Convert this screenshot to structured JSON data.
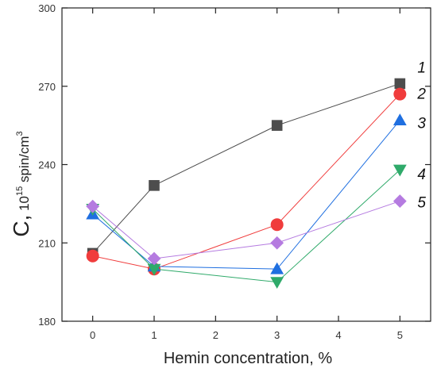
{
  "chart_data": {
    "type": "line",
    "title": "",
    "xlabel": "Hemin concentration, %",
    "ylabel": {
      "main": "C,",
      "sub": " 10",
      "exp": "15",
      "unit": " spin/cm",
      "unit_exp": "3"
    },
    "xlim": [
      -0.5,
      5.5
    ],
    "ylim": [
      180,
      300
    ],
    "xticks": [
      0,
      1,
      2,
      3,
      4,
      5
    ],
    "yticks": [
      180,
      210,
      240,
      270,
      300
    ],
    "grid": false,
    "legend": "inline labels at line ends",
    "series": [
      {
        "label": "1",
        "color": "#4d4d4d",
        "marker": "square",
        "x": [
          0,
          1,
          3,
          5
        ],
        "y": [
          206,
          232,
          255,
          271
        ]
      },
      {
        "label": "2",
        "color": "#f03c3c",
        "marker": "circle",
        "x": [
          0,
          1,
          3,
          5
        ],
        "y": [
          205,
          200,
          217,
          267
        ]
      },
      {
        "label": "3",
        "color": "#1f6fe0",
        "marker": "triangle-up",
        "x": [
          0,
          1,
          3,
          5
        ],
        "y": [
          221,
          201,
          200,
          257
        ]
      },
      {
        "label": "4",
        "color": "#2faa6a",
        "marker": "triangle-down",
        "x": [
          0,
          1,
          3,
          5
        ],
        "y": [
          223,
          200,
          195,
          238
        ]
      },
      {
        "label": "5",
        "color": "#b57be0",
        "marker": "diamond",
        "x": [
          0,
          1,
          3,
          5
        ],
        "y": [
          224,
          204,
          210,
          226
        ]
      }
    ]
  }
}
